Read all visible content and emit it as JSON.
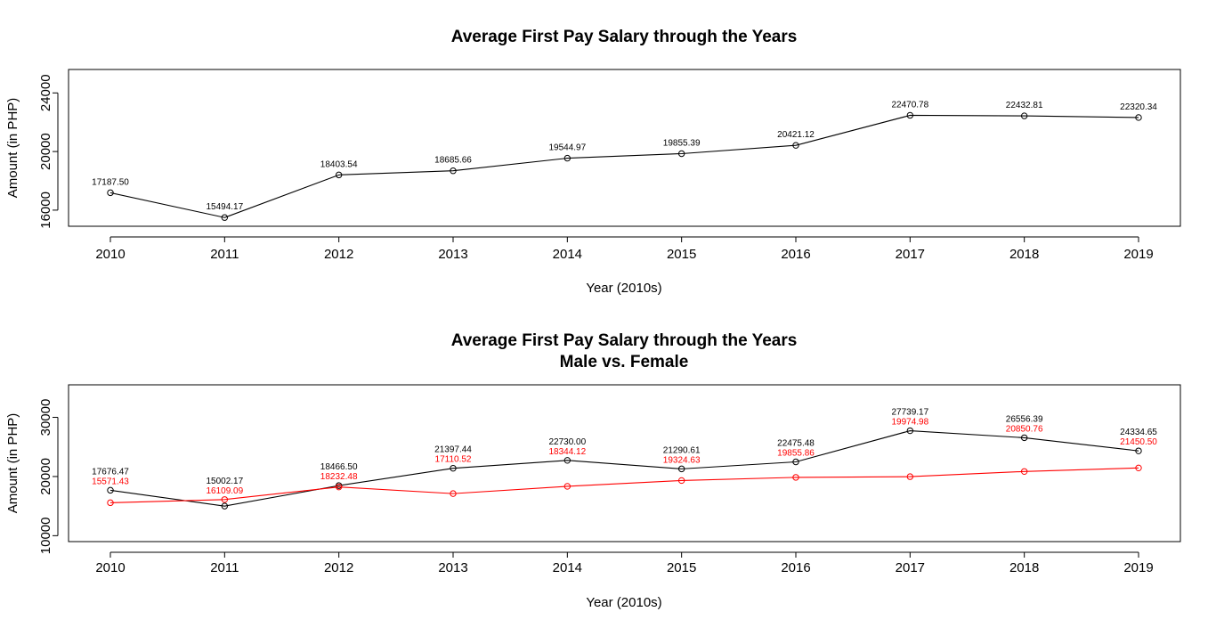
{
  "chart_data": [
    {
      "type": "line",
      "title": "Average First Pay Salary through the Years",
      "subtitle": "",
      "xlabel": "Year (2010s)",
      "ylabel": "Amount (in PHP)",
      "x": [
        "2010",
        "2011",
        "2012",
        "2013",
        "2014",
        "2015",
        "2016",
        "2017",
        "2018",
        "2019"
      ],
      "yticks": [
        16000,
        20000,
        24000
      ],
      "ylim": [
        14900,
        25600
      ],
      "series": [
        {
          "color": "#000000",
          "values": [
            17187.5,
            15494.17,
            18403.54,
            18685.66,
            19544.97,
            19855.39,
            20421.12,
            22470.78,
            22432.81,
            22320.34
          ],
          "labels": [
            "17187.50",
            "15494.17",
            "18403.54",
            "18685.66",
            "19544.97",
            "19855.39",
            "20421.12",
            "22470.78",
            "22432.81",
            "22320.34"
          ]
        }
      ]
    },
    {
      "type": "line",
      "title": "Average First Pay Salary through the Years",
      "subtitle": "Male vs. Female",
      "xlabel": "Year (2010s)",
      "ylabel": "Amount (in PHP)",
      "x": [
        "2010",
        "2011",
        "2012",
        "2013",
        "2014",
        "2015",
        "2016",
        "2017",
        "2018",
        "2019"
      ],
      "yticks": [
        10000,
        20000,
        30000
      ],
      "ylim": [
        9000,
        35500
      ],
      "series": [
        {
          "color": "#000000",
          "values": [
            17676.47,
            15002.17,
            18466.5,
            21397.44,
            22730.0,
            21290.61,
            22475.48,
            27739.17,
            26556.39,
            24334.65
          ],
          "labels": [
            "17676.47",
            "15002.17",
            "18466.50",
            "21397.44",
            "22730.00",
            "21290.61",
            "22475.48",
            "27739.17",
            "26556.39",
            "24334.65"
          ]
        },
        {
          "color": "#ff0000",
          "values": [
            15571.43,
            16109.09,
            18232.48,
            17110.52,
            18344.12,
            19324.63,
            19855.86,
            19974.98,
            20850.76,
            21450.5
          ],
          "labels": [
            "15571.43",
            "16109.09",
            "18232.48",
            "17110.52",
            "18344.12",
            "19324.63",
            "19855.86",
            "19974.98",
            "20850.76",
            "21450.50"
          ]
        }
      ]
    }
  ]
}
